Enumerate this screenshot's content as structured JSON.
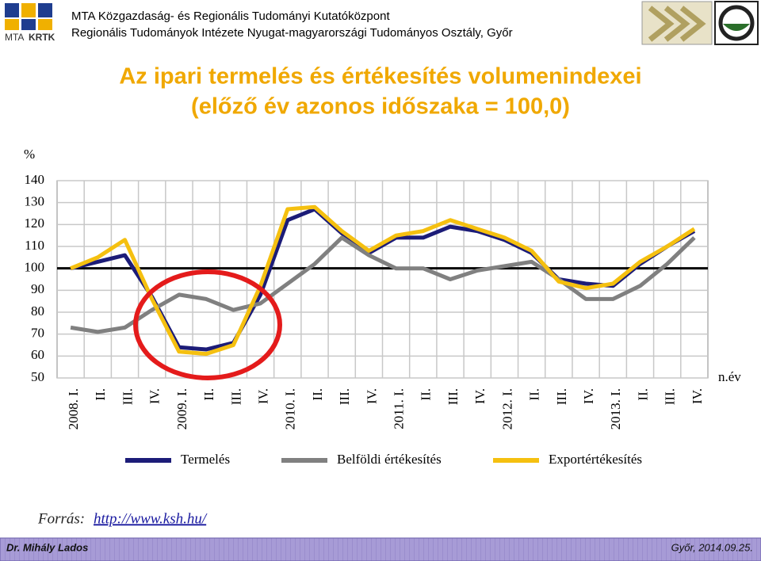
{
  "header": {
    "logo": {
      "prefix": "MTA",
      "name": "KRTK"
    },
    "line1": "MTA Közgazdaság- és Regionális Tudományi Kutatóközpont",
    "line2": "Regionális Tudományok Intézete Nyugat-magyarországi Tudományos Osztály, Győr"
  },
  "chart_data": {
    "type": "line",
    "title": "Az ipari termelés és értékesítés volumenindexei",
    "subtitle": "(előző év azonos időszaka = 100,0)",
    "y_label": "%",
    "x_label": "n.év",
    "categories": [
      "2008. I.",
      "II.",
      "III.",
      "IV.",
      "2009. I.",
      "II.",
      "III.",
      "IV.",
      "2010. I.",
      "II.",
      "III.",
      "IV.",
      "2011. I.",
      "II.",
      "III.",
      "IV.",
      "2012. I.",
      "II.",
      "III.",
      "IV.",
      "2013. I.",
      "II.",
      "III.",
      "IV."
    ],
    "series": [
      {
        "name": "Termelés",
        "color": "#1c1c78",
        "values": [
          100,
          103,
          106,
          87,
          64,
          63,
          66,
          88,
          122,
          127,
          116,
          107,
          114,
          114,
          119,
          117,
          113,
          107,
          95,
          93,
          92,
          102,
          110,
          117
        ]
      },
      {
        "name": "Belföldi értékesítés",
        "color": "#808080",
        "values": [
          73,
          71,
          73,
          81,
          88,
          86,
          81,
          84,
          93,
          102,
          114,
          106,
          100,
          100,
          95,
          99,
          101,
          103,
          95,
          86,
          86,
          92,
          102,
          114
        ]
      },
      {
        "name": "Exportértékesítés",
        "color": "#f5c010",
        "values": [
          100,
          105,
          113,
          86,
          62,
          61,
          65,
          92,
          127,
          128,
          117,
          108,
          115,
          117,
          122,
          118,
          114,
          108,
          94,
          91,
          93,
          103,
          110,
          118
        ]
      }
    ],
    "ylim": [
      50,
      140
    ],
    "yticks": [
      50,
      60,
      70,
      80,
      90,
      100,
      110,
      120,
      130,
      140
    ],
    "reference_line": 100,
    "grid": true,
    "legend": "bottom"
  },
  "source": {
    "label": "Forrás:",
    "link": "http://www.ksh.hu/"
  },
  "footer": {
    "author": "Dr. Mihály Lados",
    "date": "Győr, 2014.09.25."
  }
}
